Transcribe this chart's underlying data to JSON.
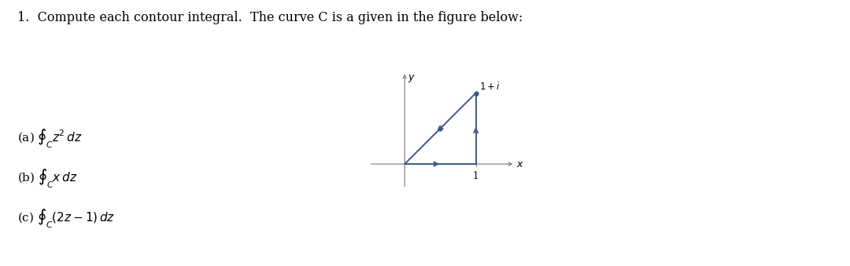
{
  "title": "1.  Compute each contour integral.  The curve C is a given in the figure below:",
  "title_fontsize": 11.5,
  "background_color": "#ffffff",
  "curve_color": "#3a5a8a",
  "curve_linewidth": 1.4,
  "axis_color": "#777777",
  "axis_linewidth": 0.8,
  "label_fontsize": 9,
  "annotation_fontsize": 8.5,
  "parts": [
    "(a) $\\oint_C z^2\\,dz$",
    "(b) $\\oint_C x\\,dz$",
    "(c) $\\oint_C (2z-1)\\,dz$"
  ],
  "parts_fontsize": 11
}
